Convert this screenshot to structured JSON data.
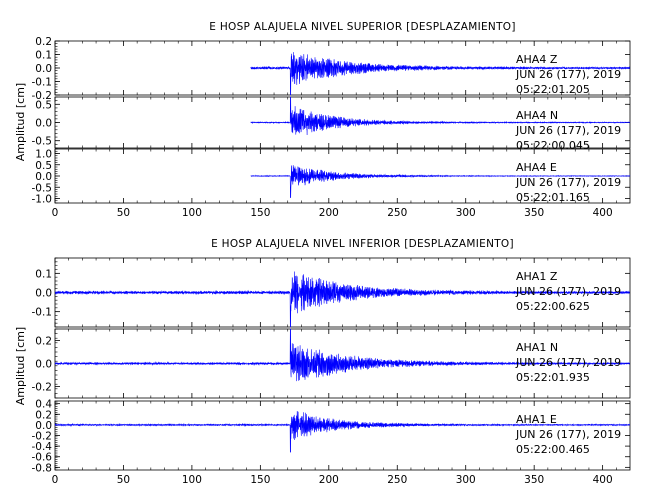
{
  "chart_data": [
    {
      "type": "line",
      "title": "E HOSP ALAJUELA NIVEL SUPERIOR [DESPLAZAMIENTO]",
      "ylabel": "Amplitud [cm]",
      "xlim": [
        0,
        420
      ],
      "x_ticks": [
        "0",
        "50",
        "100",
        "150",
        "200",
        "250",
        "300",
        "350",
        "400"
      ],
      "grid": false,
      "color": "#0000ff",
      "traces": [
        {
          "station": "AHA4",
          "component": "Z",
          "date": "JUN 26 (177), 2019",
          "time": "05:22:01.205",
          "ylim": [
            -0.2,
            0.2
          ],
          "y_ticks": [
            "0.2",
            "0.1",
            "0.0",
            "-0.1",
            "-0.2"
          ],
          "start": 143,
          "onset": 172,
          "peak": 0.14,
          "pre": 0.012,
          "decay": 38,
          "end": 420
        },
        {
          "station": "AHA4",
          "component": "N",
          "date": "JUN 26 (177), 2019",
          "time": "05:22:00.045",
          "ylim": [
            -0.7,
            0.7
          ],
          "y_ticks": [
            "0.5",
            "0.0",
            "-0.5"
          ],
          "start": 143,
          "onset": 172,
          "peak": 0.5,
          "pre": 0.02,
          "decay": 30,
          "end": 420
        },
        {
          "station": "AHA4",
          "component": "E",
          "date": "JUN 26 (177), 2019",
          "time": "05:22:01.165",
          "ylim": [
            -1.2,
            1.2
          ],
          "y_ticks": [
            "1.0",
            "0.5",
            "0.0",
            "-0.5",
            "-1.0"
          ],
          "start": 143,
          "onset": 172,
          "peak": 0.6,
          "pre": 0.025,
          "decay": 28,
          "end": 420
        }
      ]
    },
    {
      "type": "line",
      "title": "E HOSP ALAJUELA NIVEL INFERIOR [DESPLAZAMIENTO]",
      "ylabel": "Amplitud [cm]",
      "xlim": [
        0,
        420
      ],
      "x_ticks": [
        "0",
        "50",
        "100",
        "150",
        "200",
        "250",
        "300",
        "350",
        "400"
      ],
      "grid": false,
      "color": "#0000ff",
      "traces": [
        {
          "station": "AHA1",
          "component": "Z",
          "date": "JUN 26 (177), 2019",
          "time": "05:22:00.625",
          "ylim": [
            -0.18,
            0.18
          ],
          "y_ticks": [
            "0.1",
            "0.0",
            "-0.1"
          ],
          "start": 0,
          "onset": 172,
          "peak": 0.12,
          "pre": 0.01,
          "decay": 40,
          "end": 420
        },
        {
          "station": "AHA1",
          "component": "N",
          "date": "JUN 26 (177), 2019",
          "time": "05:22:01.935",
          "ylim": [
            -0.3,
            0.3
          ],
          "y_ticks": [
            "0.2",
            "0.0",
            "-0.2"
          ],
          "start": 0,
          "onset": 172,
          "peak": 0.2,
          "pre": 0.012,
          "decay": 40,
          "end": 420
        },
        {
          "station": "AHA1",
          "component": "E",
          "date": "JUN 26 (177), 2019",
          "time": "05:22:00.465",
          "ylim": [
            -0.85,
            0.45
          ],
          "y_ticks": [
            "0.4",
            "0.2",
            "0.0",
            "-0.2",
            "-0.4",
            "-0.6",
            "-0.8"
          ],
          "start": 0,
          "onset": 172,
          "peak": 0.32,
          "pre": 0.02,
          "decay": 30,
          "end": 420
        }
      ]
    }
  ]
}
